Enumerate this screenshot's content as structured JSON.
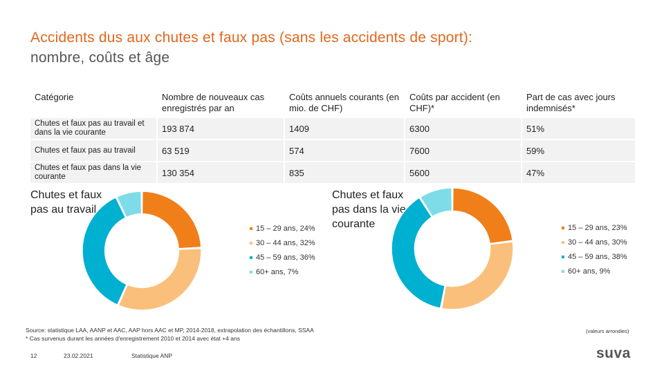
{
  "title": {
    "line1": "Accidents dus aux chutes et faux pas (sans les accidents de sport):",
    "line2": "nombre, coûts et âge"
  },
  "table": {
    "headers": [
      "Catégorie",
      "Nombre de nouveaux cas enregistrés par an",
      "Coûts annuels courants (en mio. de CHF)",
      "Coûts par accident (en CHF)*",
      "Part de cas avec jours indemnisés*"
    ],
    "rows": [
      [
        "Chutes et faux pas au travail et dans la vie courante",
        "193 874",
        "1409",
        "6300",
        "51%"
      ],
      [
        "Chutes et faux pas au travail",
        "63 519",
        "574",
        "7600",
        "59%"
      ],
      [
        "Chutes et faux pas dans la vie courante",
        "130 354",
        "835",
        "5600",
        "47%"
      ]
    ]
  },
  "chart_data": [
    {
      "type": "pie",
      "title": "Chutes et faux pas au travail",
      "categories": [
        "15 – 29 ans",
        "30 – 44 ans",
        "45 – 59 ans",
        "60+ ans"
      ],
      "values": [
        24,
        32,
        36,
        7
      ],
      "legend": [
        "15 – 29 ans, 24%",
        "30 – 44 ans, 32%",
        "45 – 59 ans, 36%",
        "60+ ans, 7%"
      ],
      "colors": [
        "#f07f1a",
        "#fbbf7c",
        "#00b0d0",
        "#7ddce8"
      ]
    },
    {
      "type": "pie",
      "title": "Chutes et faux pas dans la vie courante",
      "categories": [
        "15 – 29 ans",
        "30 – 44 ans",
        "45 – 59 ans",
        "60+ ans"
      ],
      "values": [
        23,
        30,
        38,
        9
      ],
      "legend": [
        "15 – 29 ans, 23%",
        "30 – 44 ans, 30%",
        "45 – 59 ans, 38%",
        "60+ ans, 9%"
      ],
      "colors": [
        "#f07f1a",
        "#fbbf7c",
        "#00b0d0",
        "#7ddce8"
      ]
    }
  ],
  "chart_labels": {
    "left": "Chutes et faux pas au travail",
    "right": "Chutes et faux pas dans la vie courante"
  },
  "footer": {
    "source": "Source: statistique LAA, AANP et AAC, AAP hors AAC et MP, 2014-2018, extrapolation des échantillons, SSAA",
    "note": "* Cas survenus durant les années d'enregistrement 2010 et 2014 avec état +4 ans",
    "rounded": "(valeurs arrondies)",
    "page": "12",
    "date": "23.02.2021",
    "org": "Statistique ANP",
    "logo": "suva"
  }
}
